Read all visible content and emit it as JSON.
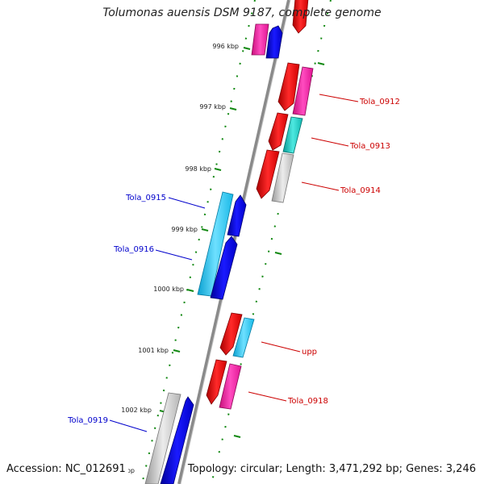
{
  "title": "Tolumonas auensis DSM 9187, complete genome",
  "accession_text": "Accession: NC_012691",
  "summary_text": "Topology: circular; Length: 3,471,292 bp; Genes: 3,246",
  "scale_ticks": [
    {
      "label": "996 kbp"
    },
    {
      "label": "997 kbp"
    },
    {
      "label": "998 kbp"
    },
    {
      "label": "999 kbp"
    },
    {
      "label": "1000 kbp"
    },
    {
      "label": "1001 kbp"
    },
    {
      "label": "1002 kbp"
    },
    {
      "label": "kbp"
    }
  ],
  "gene_labels": [
    {
      "text": "Tola_0912",
      "color": "#cc0000"
    },
    {
      "text": "Tola_0913",
      "color": "#cc0000"
    },
    {
      "text": "Tola_0914",
      "color": "#cc0000"
    },
    {
      "text": "Tola_0915",
      "color": "#0000cc"
    },
    {
      "text": "Tola_0916",
      "color": "#0000cc"
    },
    {
      "text": "upp",
      "color": "#cc0000"
    },
    {
      "text": "Tola_0918",
      "color": "#cc0000"
    },
    {
      "text": "Tola_0919",
      "color": "#0000cc"
    }
  ],
  "colors": {
    "backbone": "#8a8a8a",
    "tick_marks": "#118811",
    "red": "#ff0000",
    "blue": "#0000ee",
    "magenta": "#ff1ca8",
    "cyan": "#1ec8f0",
    "teal": "#12c8c0",
    "grey": "#c4c4c4"
  }
}
